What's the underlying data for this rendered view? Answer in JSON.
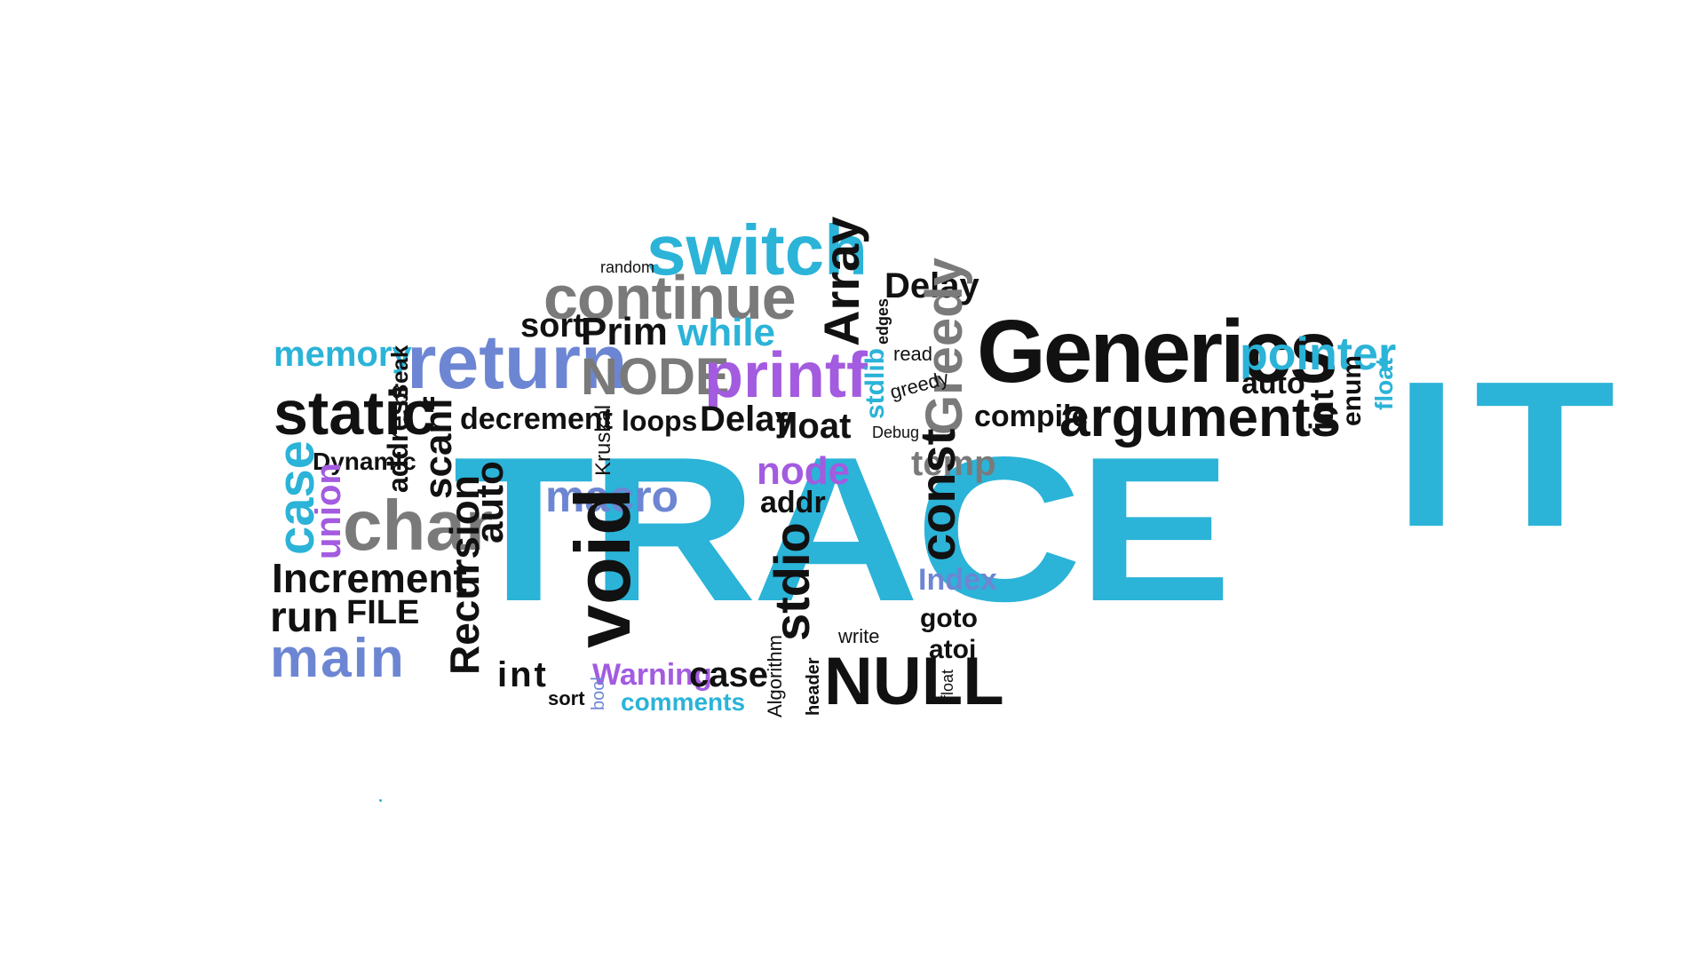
{
  "headline": {
    "word1": "TRACE",
    "word2": "IT"
  },
  "colors": {
    "black": "#111111",
    "gray": "#7a7a7a",
    "blue": "#2bb3d8",
    "purple": "#a35be0",
    "steel": "#6d86d3"
  },
  "words": {
    "switch": "switch",
    "random": "random",
    "continue": "continue",
    "array": "Array",
    "delay_top": "Delay",
    "sort_top": "sort",
    "prim": "Prim",
    "while": "while",
    "edges": "edges",
    "memory": "memory",
    "return": "return",
    "break": "break",
    "node_caps": "NODE",
    "printf": "printf",
    "stdlib": "stdlib",
    "read": "read",
    "greedy_big": "Greedy",
    "greedy_small": "greedy",
    "generics": "Generics",
    "pointer": "pointer",
    "auto_right": "auto",
    "int_right": "int",
    "enum": "enum",
    "float_right": "float",
    "static": "static",
    "address": "address",
    "scanf": "scanf",
    "decrement": "decrement",
    "kruskal": "Kruskal",
    "loops": "loops",
    "delay_mid": "Delay",
    "float_mid": "float",
    "debug": "Debug",
    "compile": "compile",
    "arguments": "arguments",
    "case_left": "case",
    "dynamic": "Dynamic",
    "union": "union",
    "char": "char",
    "auto_left": "auto",
    "macro": "macro",
    "node_lower": "node",
    "temp": "temp",
    "addr": "addr",
    "const": "const",
    "increment": "Increment",
    "recursion": "Recursion",
    "void": "void",
    "stdio": "stdio",
    "index": "Index",
    "run": "run",
    "file": "FILE",
    "goto": "goto",
    "main": "main",
    "write": "write",
    "atoi": "atoi",
    "int_bottom": "int",
    "warning": "Warning",
    "case_bottom": "case",
    "algorithm": "Algorithm",
    "header": "header",
    "null": "NULL",
    "float_bottom": "float",
    "sort_bottom": "sort",
    "bool": "bool",
    "comments": "comments"
  }
}
